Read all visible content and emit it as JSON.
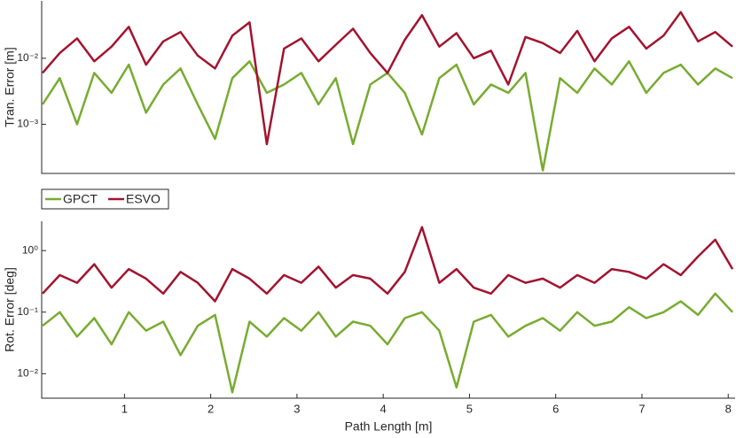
{
  "chart_data": [
    {
      "type": "line",
      "ylabel": "Tran. Error [m]",
      "log_y": true,
      "legend": "below",
      "x": [
        0.05,
        0.25,
        0.45,
        0.65,
        0.85,
        1.05,
        1.25,
        1.45,
        1.65,
        1.85,
        2.05,
        2.25,
        2.45,
        2.65,
        2.85,
        3.05,
        3.25,
        3.45,
        3.65,
        3.85,
        4.05,
        4.25,
        4.45,
        4.65,
        4.85,
        5.05,
        5.25,
        5.45,
        5.65,
        5.85,
        6.05,
        6.25,
        6.45,
        6.65,
        6.85,
        7.05,
        7.25,
        7.45,
        7.65,
        7.85,
        8.05
      ],
      "xlim": [
        0.04,
        8.08
      ],
      "ylim": [
        0.00018,
        0.074
      ],
      "yticks": [
        {
          "value": 0.001,
          "label": "10⁻³"
        },
        {
          "value": 0.01,
          "label": "10⁻²"
        }
      ],
      "series": [
        {
          "name": "GPCT",
          "color": "#77ac30",
          "values": [
            0.002,
            0.005,
            0.001,
            0.006,
            0.003,
            0.008,
            0.0015,
            0.004,
            0.007,
            0.002,
            0.0006,
            0.005,
            0.009,
            0.003,
            0.004,
            0.006,
            0.002,
            0.005,
            0.0005,
            0.004,
            0.006,
            0.003,
            0.0007,
            0.005,
            0.008,
            0.002,
            0.004,
            0.003,
            0.006,
            0.0002,
            0.005,
            0.003,
            0.007,
            0.004,
            0.009,
            0.003,
            0.006,
            0.008,
            0.004,
            0.007,
            0.005
          ]
        },
        {
          "name": "ESVO",
          "color": "#a2142f",
          "values": [
            0.006,
            0.012,
            0.02,
            0.009,
            0.015,
            0.03,
            0.008,
            0.018,
            0.025,
            0.011,
            0.007,
            0.022,
            0.035,
            0.0005,
            0.014,
            0.02,
            0.009,
            0.016,
            0.028,
            0.012,
            0.006,
            0.019,
            0.045,
            0.015,
            0.024,
            0.01,
            0.013,
            0.004,
            0.021,
            0.017,
            0.012,
            0.026,
            0.009,
            0.02,
            0.03,
            0.014,
            0.022,
            0.05,
            0.018,
            0.025,
            0.015
          ]
        }
      ]
    },
    {
      "type": "line",
      "ylabel": "Rot. Error [deg]",
      "xlabel": "Path Length [m]",
      "log_y": true,
      "x": [
        0.05,
        0.25,
        0.45,
        0.65,
        0.85,
        1.05,
        1.25,
        1.45,
        1.65,
        1.85,
        2.05,
        2.25,
        2.45,
        2.65,
        2.85,
        3.05,
        3.25,
        3.45,
        3.65,
        3.85,
        4.05,
        4.25,
        4.45,
        4.65,
        4.85,
        5.05,
        5.25,
        5.45,
        5.65,
        5.85,
        6.05,
        6.25,
        6.45,
        6.65,
        6.85,
        7.05,
        7.25,
        7.45,
        7.65,
        7.85,
        8.05
      ],
      "xlim": [
        0.04,
        8.08
      ],
      "ylim": [
        0.004,
        3
      ],
      "xticks": [
        1,
        2,
        3,
        4,
        5,
        6,
        7,
        8
      ],
      "yticks": [
        {
          "value": 0.01,
          "label": "10⁻²"
        },
        {
          "value": 0.1,
          "label": "10⁻¹"
        },
        {
          "value": 1,
          "label": "10⁰"
        }
      ],
      "series": [
        {
          "name": "GPCT",
          "color": "#77ac30",
          "values": [
            0.06,
            0.1,
            0.04,
            0.08,
            0.03,
            0.1,
            0.05,
            0.07,
            0.02,
            0.06,
            0.09,
            0.005,
            0.07,
            0.04,
            0.08,
            0.05,
            0.1,
            0.04,
            0.07,
            0.06,
            0.03,
            0.08,
            0.1,
            0.05,
            0.006,
            0.07,
            0.09,
            0.04,
            0.06,
            0.08,
            0.05,
            0.1,
            0.06,
            0.07,
            0.12,
            0.08,
            0.1,
            0.15,
            0.09,
            0.2,
            0.1
          ]
        },
        {
          "name": "ESVO",
          "color": "#a2142f",
          "values": [
            0.2,
            0.4,
            0.3,
            0.6,
            0.25,
            0.5,
            0.35,
            0.2,
            0.45,
            0.3,
            0.15,
            0.5,
            0.35,
            0.2,
            0.4,
            0.3,
            0.55,
            0.25,
            0.4,
            0.35,
            0.2,
            0.45,
            2.4,
            0.3,
            0.5,
            0.25,
            0.2,
            0.4,
            0.3,
            0.35,
            0.25,
            0.4,
            0.3,
            0.5,
            0.45,
            0.35,
            0.6,
            0.4,
            0.8,
            1.5,
            0.5
          ]
        }
      ]
    }
  ]
}
